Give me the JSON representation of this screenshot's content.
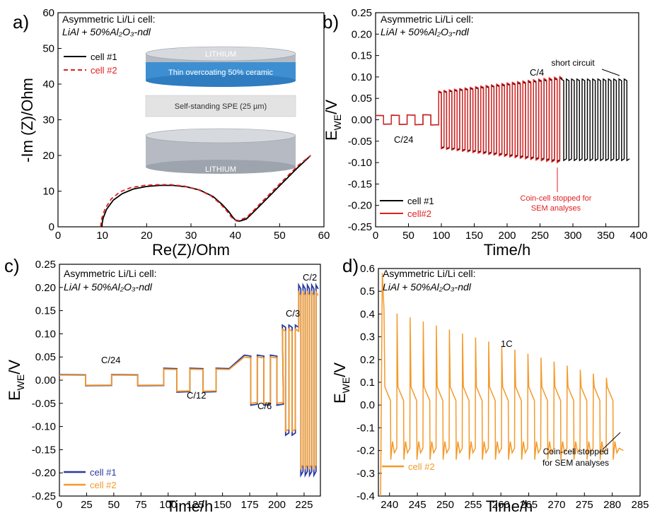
{
  "chart_data": [
    {
      "id": "a",
      "type": "line",
      "panel_label": "a)",
      "title_line1": "Asymmetric Li/Li cell:",
      "title_line2": "LiAl + 50%Al₂O₃-ndl",
      "xlabel": "Re(Z)/Ohm",
      "ylabel": "-Im (Z)/Ohm",
      "xlim": [
        0,
        60
      ],
      "ylim": [
        0,
        60
      ],
      "xticks": [
        0,
        10,
        20,
        30,
        40,
        50,
        60
      ],
      "yticks": [
        0,
        10,
        20,
        30,
        40,
        50,
        60
      ],
      "legend": "top-left",
      "inset": {
        "top_disk": "LITHIUM",
        "coating": "Thin overcoating 50% ceramic",
        "membrane": "Self-standing SPE (25 µm)",
        "bottom_disk": "LITHIUM"
      },
      "series": [
        {
          "name": "cell #1",
          "color": "#000000",
          "dash": "solid",
          "x": [
            9.8,
            10.2,
            11,
            12.5,
            14.5,
            17,
            20,
            23,
            26,
            29,
            32,
            35,
            37,
            38.5,
            39.5,
            40.2,
            41,
            42.5,
            44,
            46,
            48,
            50,
            52,
            54,
            56,
            57
          ],
          "y": [
            0,
            2.5,
            5,
            7.5,
            9.3,
            10.6,
            11.3,
            11.6,
            11.6,
            11.2,
            10.3,
            8.5,
            6.3,
            4.3,
            2.6,
            1.7,
            1.6,
            2.2,
            4,
            6.5,
            9,
            11.5,
            14,
            16.5,
            18.8,
            20
          ]
        },
        {
          "name": "cell #2",
          "color": "#e02020",
          "dash": "dashed",
          "x": [
            9.6,
            9.9,
            10.6,
            12,
            14,
            16.5,
            19.5,
            22.5,
            25.5,
            28.5,
            31.5,
            34.5,
            36.5,
            38,
            39,
            39.8,
            40.8,
            42.5,
            44,
            46,
            48,
            50,
            52,
            54,
            56,
            57
          ],
          "y": [
            0,
            2.5,
            5,
            7.8,
            9.8,
            11,
            11.6,
            11.8,
            11.8,
            11.4,
            10.5,
            8.7,
            6.6,
            4.6,
            2.9,
            1.9,
            1.8,
            2.6,
            4.4,
            7,
            9.5,
            12,
            14.5,
            17,
            19,
            20
          ]
        }
      ]
    },
    {
      "id": "b",
      "type": "line",
      "panel_label": "b)",
      "title_line1": "Asymmetric Li/Li cell:",
      "title_line2": "LiAl + 50%Al₂O₃-ndl",
      "xlabel": "Time/h",
      "ylabel": "E_WE/V",
      "xlim": [
        0,
        400
      ],
      "ylim": [
        -0.25,
        0.25
      ],
      "xticks": [
        0,
        50,
        100,
        150,
        200,
        250,
        300,
        350,
        400
      ],
      "yticks": [
        -0.25,
        -0.2,
        -0.15,
        -0.1,
        -0.05,
        0.0,
        0.05,
        0.1,
        0.15,
        0.2,
        0.25
      ],
      "legend": "bottom-left",
      "annotations": [
        "C/24",
        "C/4",
        "short circuit",
        "Coin-cell stopped for",
        "SEM analyses"
      ],
      "series": [
        {
          "name": "cell #1",
          "color": "#000000"
        },
        {
          "name": "cell#2",
          "color": "#e02020"
        }
      ],
      "segments": [
        {
          "t_start": 0,
          "t_end": 96,
          "period": 24,
          "amp_start": 0.01,
          "amp_end": 0.012
        },
        {
          "t_start": 96,
          "t_end": 282,
          "period": 8,
          "amp_start": 0.065,
          "amp_end": 0.098
        },
        {
          "t_start": 282,
          "t_end": 385,
          "period": 8,
          "amp_start": 0.095,
          "amp_end": 0.095
        }
      ]
    },
    {
      "id": "c",
      "type": "line",
      "panel_label": "c)",
      "title_line1": "Asymmetric Li/Li cell:",
      "title_line2": "LiAl + 50%Al₂O₃-ndl",
      "xlabel": "Time/h",
      "ylabel": "E_WE/V",
      "xlim": [
        0,
        240
      ],
      "ylim": [
        -0.25,
        0.25
      ],
      "xticks": [
        0,
        25,
        50,
        75,
        100,
        125,
        150,
        175,
        200,
        225
      ],
      "yticks": [
        -0.25,
        -0.2,
        -0.15,
        -0.1,
        -0.05,
        0.0,
        0.05,
        0.1,
        0.15,
        0.2,
        0.25
      ],
      "legend": "bottom-left",
      "annotations": [
        "C/24",
        "C/12",
        "C/6",
        "C/3",
        "C/2"
      ],
      "series": [
        {
          "name": "cell #1",
          "color": "#2b3a9b"
        },
        {
          "name": "cell #2",
          "color": "#f39a2b"
        }
      ],
      "segments": [
        {
          "t_start": 0,
          "t_end": 96,
          "period": 48,
          "amp": 0.011
        },
        {
          "t_start": 96,
          "t_end": 160,
          "period": 24,
          "amp": 0.024
        },
        {
          "t_start": 170,
          "t_end": 205,
          "period": 12,
          "amp": 0.05
        },
        {
          "t_start": 205,
          "t_end": 220,
          "period": 6,
          "amp": 0.11
        },
        {
          "t_start": 220,
          "t_end": 238,
          "period": 4,
          "amp": 0.19
        }
      ]
    },
    {
      "id": "d",
      "type": "line",
      "panel_label": "d)",
      "title_line1": "Asymmetric Li/Li cell:",
      "title_line2": "LiAl + 50%Al₂O₃-ndl",
      "xlabel": "Time/h",
      "ylabel": "E_WE/V",
      "xlim": [
        238,
        285
      ],
      "ylim": [
        -0.4,
        0.6
      ],
      "xticks": [
        240,
        245,
        250,
        255,
        260,
        265,
        270,
        275,
        280,
        285
      ],
      "yticks": [
        -0.4,
        -0.3,
        -0.2,
        -0.1,
        0.0,
        0.1,
        0.2,
        0.3,
        0.4,
        0.5,
        0.6
      ],
      "legend": "bottom-left",
      "annotations": [
        "1C",
        "Coin-cell stopped",
        "for SEM analyses"
      ],
      "series": [
        {
          "name": "cell #2",
          "color": "#f39a2b"
        }
      ],
      "cycles": {
        "t_start": 239,
        "t_end": 282,
        "period": 2.35,
        "spike_start": 0.42,
        "spike_end": 0.12,
        "neg": -0.21
      }
    }
  ]
}
